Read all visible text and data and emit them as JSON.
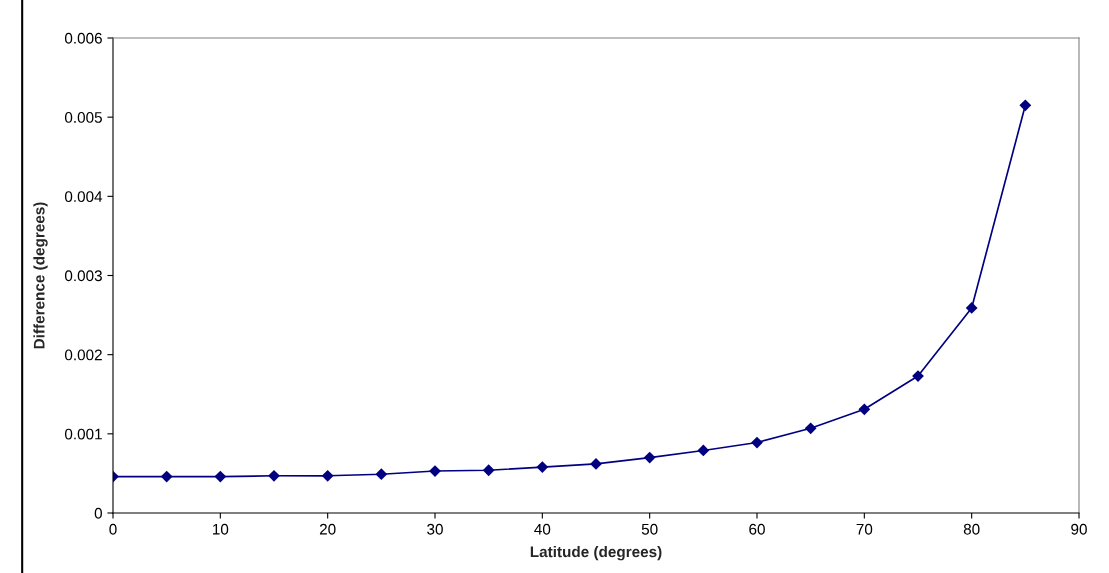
{
  "chart_data": {
    "type": "line",
    "xlabel": "Latitude (degrees)",
    "ylabel": "Difference (degrees)",
    "x": [
      0,
      5,
      10,
      15,
      20,
      25,
      30,
      35,
      40,
      45,
      50,
      55,
      60,
      65,
      70,
      75,
      80,
      85
    ],
    "series": [
      {
        "color": "#000080",
        "values": [
          0.00046,
          0.00046,
          0.00046,
          0.00047,
          0.00047,
          0.00049,
          0.00053,
          0.00054,
          0.00058,
          0.00062,
          0.0007,
          0.00079,
          0.00089,
          0.00107,
          0.00131,
          0.00173,
          0.00259,
          0.00515
        ]
      }
    ],
    "xlim": [
      0,
      90
    ],
    "xticks": [
      0,
      10,
      20,
      30,
      40,
      50,
      60,
      70,
      80,
      90
    ],
    "ylim": [
      0,
      0.006
    ],
    "yticks": [
      0,
      0.001,
      0.002,
      0.003,
      0.004,
      0.005,
      0.006
    ],
    "grid": false,
    "marker": "diamond",
    "line_style": "solid"
  }
}
